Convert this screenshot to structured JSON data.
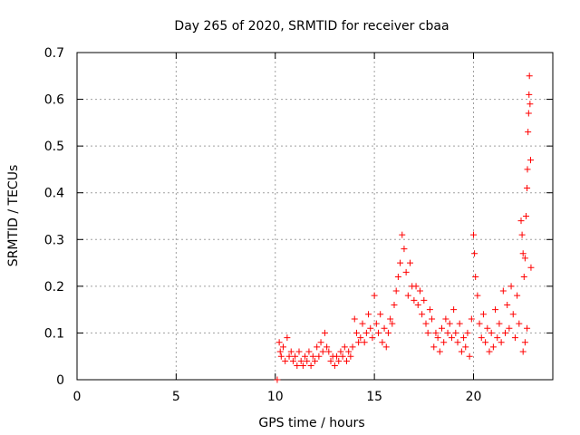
{
  "chart_data": {
    "type": "scatter",
    "title": "Day 265 of 2020, SRMTID for receiver cbaa",
    "xlabel": "GPS time / hours",
    "ylabel": "SRMTID / TECUs",
    "xlim": [
      0,
      24
    ],
    "ylim": [
      0,
      0.7
    ],
    "xticks": [
      0,
      5,
      10,
      15,
      20
    ],
    "xtick_labels": [
      "0",
      "5",
      "10",
      "15",
      "20"
    ],
    "yticks": [
      0,
      0.1,
      0.2,
      0.3,
      0.4,
      0.5,
      0.6,
      0.7
    ],
    "ytick_labels": [
      "0",
      "0.1",
      "0.2",
      "0.3",
      "0.4",
      "0.5",
      "0.6",
      "0.7"
    ],
    "grid": true,
    "marker": "+",
    "color": "#ff0000",
    "series": [
      {
        "name": "SRMTID",
        "points": [
          [
            10.1,
            0.0
          ],
          [
            10.2,
            0.08
          ],
          [
            10.25,
            0.06
          ],
          [
            10.3,
            0.05
          ],
          [
            10.4,
            0.07
          ],
          [
            10.5,
            0.04
          ],
          [
            10.6,
            0.09
          ],
          [
            10.7,
            0.05
          ],
          [
            10.8,
            0.06
          ],
          [
            10.9,
            0.04
          ],
          [
            11.0,
            0.05
          ],
          [
            11.1,
            0.03
          ],
          [
            11.2,
            0.06
          ],
          [
            11.3,
            0.04
          ],
          [
            11.4,
            0.03
          ],
          [
            11.5,
            0.05
          ],
          [
            11.6,
            0.04
          ],
          [
            11.7,
            0.06
          ],
          [
            11.8,
            0.03
          ],
          [
            11.9,
            0.05
          ],
          [
            12.0,
            0.04
          ],
          [
            12.1,
            0.07
          ],
          [
            12.2,
            0.05
          ],
          [
            12.3,
            0.08
          ],
          [
            12.4,
            0.06
          ],
          [
            12.5,
            0.1
          ],
          [
            12.6,
            0.07
          ],
          [
            12.7,
            0.06
          ],
          [
            12.8,
            0.04
          ],
          [
            12.9,
            0.05
          ],
          [
            13.0,
            0.03
          ],
          [
            13.1,
            0.05
          ],
          [
            13.2,
            0.04
          ],
          [
            13.3,
            0.06
          ],
          [
            13.4,
            0.05
          ],
          [
            13.5,
            0.07
          ],
          [
            13.6,
            0.04
          ],
          [
            13.7,
            0.06
          ],
          [
            13.8,
            0.05
          ],
          [
            13.9,
            0.07
          ],
          [
            14.0,
            0.13
          ],
          [
            14.1,
            0.1
          ],
          [
            14.2,
            0.08
          ],
          [
            14.3,
            0.09
          ],
          [
            14.4,
            0.12
          ],
          [
            14.5,
            0.08
          ],
          [
            14.6,
            0.1
          ],
          [
            14.7,
            0.14
          ],
          [
            14.8,
            0.11
          ],
          [
            14.9,
            0.09
          ],
          [
            15.0,
            0.18
          ],
          [
            15.1,
            0.12
          ],
          [
            15.2,
            0.1
          ],
          [
            15.3,
            0.14
          ],
          [
            15.4,
            0.08
          ],
          [
            15.5,
            0.11
          ],
          [
            15.6,
            0.07
          ],
          [
            15.7,
            0.1
          ],
          [
            15.8,
            0.13
          ],
          [
            15.9,
            0.12
          ],
          [
            16.0,
            0.16
          ],
          [
            16.1,
            0.19
          ],
          [
            16.2,
            0.22
          ],
          [
            16.3,
            0.25
          ],
          [
            16.4,
            0.31
          ],
          [
            16.5,
            0.28
          ],
          [
            16.6,
            0.23
          ],
          [
            16.7,
            0.18
          ],
          [
            16.8,
            0.25
          ],
          [
            16.9,
            0.2
          ],
          [
            17.0,
            0.17
          ],
          [
            17.1,
            0.2
          ],
          [
            17.2,
            0.16
          ],
          [
            17.3,
            0.19
          ],
          [
            17.4,
            0.14
          ],
          [
            17.5,
            0.17
          ],
          [
            17.6,
            0.12
          ],
          [
            17.7,
            0.1
          ],
          [
            17.8,
            0.15
          ],
          [
            17.9,
            0.13
          ],
          [
            18.0,
            0.07
          ],
          [
            18.1,
            0.1
          ],
          [
            18.2,
            0.09
          ],
          [
            18.3,
            0.06
          ],
          [
            18.4,
            0.11
          ],
          [
            18.5,
            0.08
          ],
          [
            18.6,
            0.13
          ],
          [
            18.7,
            0.1
          ],
          [
            18.8,
            0.12
          ],
          [
            18.9,
            0.09
          ],
          [
            19.0,
            0.15
          ],
          [
            19.1,
            0.1
          ],
          [
            19.2,
            0.08
          ],
          [
            19.3,
            0.12
          ],
          [
            19.4,
            0.06
          ],
          [
            19.5,
            0.09
          ],
          [
            19.6,
            0.07
          ],
          [
            19.7,
            0.1
          ],
          [
            19.8,
            0.05
          ],
          [
            19.9,
            0.13
          ],
          [
            20.0,
            0.31
          ],
          [
            20.05,
            0.27
          ],
          [
            20.1,
            0.22
          ],
          [
            20.2,
            0.18
          ],
          [
            20.3,
            0.12
          ],
          [
            20.4,
            0.09
          ],
          [
            20.5,
            0.14
          ],
          [
            20.6,
            0.08
          ],
          [
            20.7,
            0.11
          ],
          [
            20.8,
            0.06
          ],
          [
            20.9,
            0.1
          ],
          [
            21.0,
            0.07
          ],
          [
            21.1,
            0.15
          ],
          [
            21.2,
            0.09
          ],
          [
            21.3,
            0.12
          ],
          [
            21.4,
            0.08
          ],
          [
            21.5,
            0.19
          ],
          [
            21.6,
            0.1
          ],
          [
            21.7,
            0.16
          ],
          [
            21.8,
            0.11
          ],
          [
            21.9,
            0.2
          ],
          [
            22.0,
            0.14
          ],
          [
            22.1,
            0.09
          ],
          [
            22.2,
            0.18
          ],
          [
            22.3,
            0.12
          ],
          [
            22.4,
            0.34
          ],
          [
            22.45,
            0.31
          ],
          [
            22.5,
            0.27
          ],
          [
            22.55,
            0.22
          ],
          [
            22.6,
            0.26
          ],
          [
            22.65,
            0.35
          ],
          [
            22.7,
            0.41
          ],
          [
            22.72,
            0.45
          ],
          [
            22.75,
            0.53
          ],
          [
            22.78,
            0.57
          ],
          [
            22.8,
            0.61
          ],
          [
            22.82,
            0.65
          ],
          [
            22.85,
            0.59
          ],
          [
            22.88,
            0.47
          ],
          [
            22.9,
            0.24
          ],
          [
            22.6,
            0.08
          ],
          [
            22.7,
            0.11
          ],
          [
            22.5,
            0.06
          ]
        ]
      }
    ]
  }
}
